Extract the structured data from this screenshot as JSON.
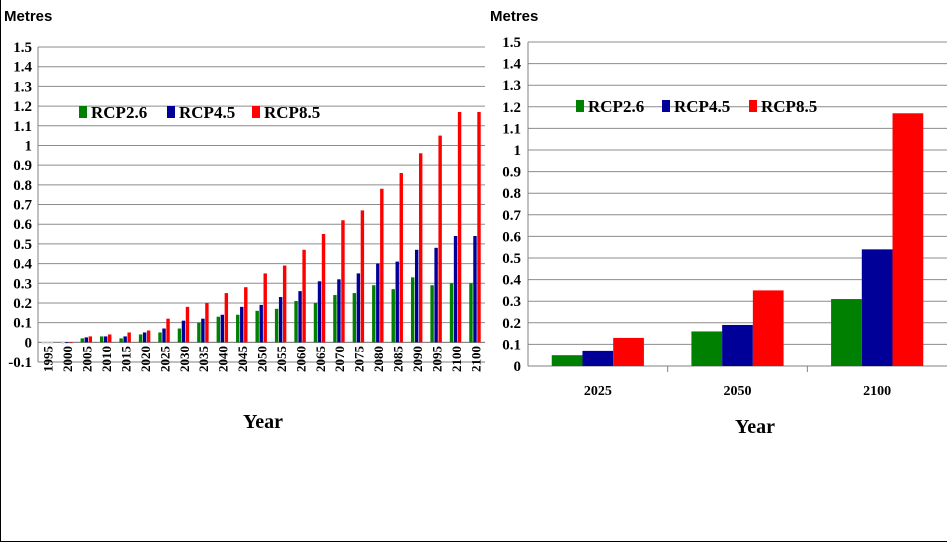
{
  "colors": {
    "rcp26": "#008000",
    "rcp45": "#000099",
    "rcp85": "#ff0000",
    "grid": "#8c8c8c",
    "axis": "#808080"
  },
  "left_unit": "Metres",
  "right_unit": "Metres",
  "chart_data": [
    {
      "type": "bar",
      "title": "",
      "ylabel": "Metres",
      "xlabel": "Year",
      "ylim": [
        -0.1,
        1.5
      ],
      "yticks": [
        "-0.1",
        "0",
        "0.1",
        "0.2",
        "0.3",
        "0.4",
        "0.5",
        "0.6",
        "0.7",
        "0.8",
        "0.9",
        "1",
        "1.1",
        "1.2",
        "1.3",
        "1.4",
        "1.5"
      ],
      "categories": [
        "1995",
        "2000",
        "2005",
        "2010",
        "2015",
        "2020",
        "2025",
        "2030",
        "2035",
        "2040",
        "2045",
        "2050",
        "2055",
        "2060",
        "2065",
        "2070",
        "2075",
        "2080",
        "2085",
        "2090",
        "2095",
        "2100",
        "2100"
      ],
      "legend_position": "top-left",
      "series": [
        {
          "name": "RCP2.6",
          "color": "#008000",
          "values": [
            -0.01,
            -0.01,
            0.02,
            0.03,
            0.02,
            0.04,
            0.05,
            0.07,
            0.1,
            0.13,
            0.14,
            0.16,
            0.17,
            0.21,
            0.2,
            0.24,
            0.25,
            0.29,
            0.27,
            0.33,
            0.29,
            0.3,
            0.3
          ]
        },
        {
          "name": "RCP4.5",
          "color": "#000099",
          "values": [
            -0.01,
            0.0,
            0.025,
            0.03,
            0.03,
            0.05,
            0.07,
            0.11,
            0.12,
            0.14,
            0.18,
            0.19,
            0.23,
            0.26,
            0.31,
            0.32,
            0.35,
            0.4,
            0.41,
            0.47,
            0.48,
            0.54,
            0.54
          ]
        },
        {
          "name": "RCP8.5",
          "color": "#ff0000",
          "values": [
            -0.01,
            0.0,
            0.03,
            0.04,
            0.05,
            0.06,
            0.12,
            0.18,
            0.2,
            0.25,
            0.28,
            0.35,
            0.39,
            0.47,
            0.55,
            0.62,
            0.67,
            0.78,
            0.86,
            0.96,
            1.05,
            1.17,
            1.17
          ]
        }
      ]
    },
    {
      "type": "bar",
      "title": "",
      "ylabel": "Metres",
      "xlabel": "Year",
      "ylim": [
        0,
        1.5
      ],
      "yticks": [
        "0",
        "0.1",
        "0.2",
        "0.3",
        "0.4",
        "0.5",
        "0.6",
        "0.7",
        "0.8",
        "0.9",
        "1",
        "1.1",
        "1.2",
        "1.3",
        "1.4",
        "1.5"
      ],
      "categories": [
        "2025",
        "2050",
        "2100"
      ],
      "legend_position": "top-left",
      "series": [
        {
          "name": "RCP2.6",
          "color": "#008000",
          "values": [
            0.05,
            0.16,
            0.31
          ]
        },
        {
          "name": "RCP4.5",
          "color": "#000099",
          "values": [
            0.07,
            0.19,
            0.54
          ]
        },
        {
          "name": "RCP8.5",
          "color": "#ff0000",
          "values": [
            0.13,
            0.35,
            1.17
          ]
        }
      ]
    }
  ]
}
